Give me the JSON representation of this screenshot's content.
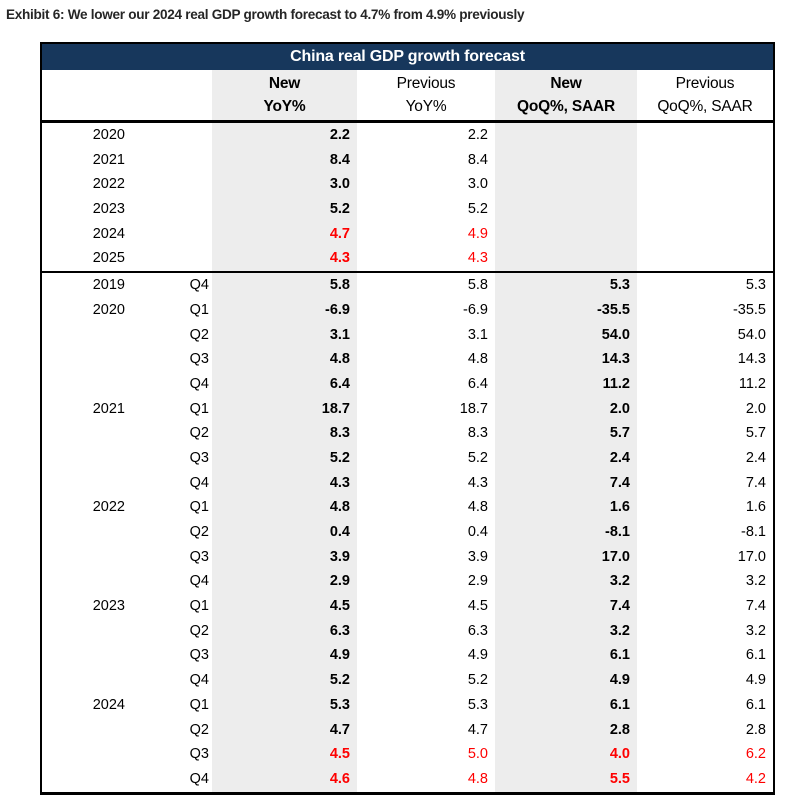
{
  "exhibit_caption": "Exhibit 6: We lower our 2024 real GDP growth forecast to 4.7% from 4.9% previously",
  "colors": {
    "navy": "#17375C",
    "shade": "#EDEDED",
    "red": "#FE0000"
  },
  "chart_data": {
    "type": "table",
    "title": "China real GDP growth forecast",
    "columns": [
      {
        "id": "new_yoy",
        "line1": "New",
        "line2": "YoY%",
        "bold": true,
        "shaded": true
      },
      {
        "id": "prev_yoy",
        "line1": "Previous",
        "line2": "YoY%",
        "bold": false,
        "shaded": false
      },
      {
        "id": "new_qoq",
        "line1": "New",
        "line2": "QoQ%, SAAR",
        "bold": true,
        "shaded": true
      },
      {
        "id": "prev_qoq",
        "line1": "Previous",
        "line2": "QoQ%, SAAR",
        "bold": false,
        "shaded": false
      }
    ],
    "annual_rows": [
      {
        "year": "2020",
        "new_yoy": "2.2",
        "prev_yoy": "2.2",
        "new_qoq": "",
        "prev_qoq": "",
        "red": false
      },
      {
        "year": "2021",
        "new_yoy": "8.4",
        "prev_yoy": "8.4",
        "new_qoq": "",
        "prev_qoq": "",
        "red": false
      },
      {
        "year": "2022",
        "new_yoy": "3.0",
        "prev_yoy": "3.0",
        "new_qoq": "",
        "prev_qoq": "",
        "red": false
      },
      {
        "year": "2023",
        "new_yoy": "5.2",
        "prev_yoy": "5.2",
        "new_qoq": "",
        "prev_qoq": "",
        "red": false
      },
      {
        "year": "2024",
        "new_yoy": "4.7",
        "prev_yoy": "4.9",
        "new_qoq": "",
        "prev_qoq": "",
        "red": true
      },
      {
        "year": "2025",
        "new_yoy": "4.3",
        "prev_yoy": "4.3",
        "new_qoq": "",
        "prev_qoq": "",
        "red": true
      }
    ],
    "quarterly_rows": [
      {
        "year": "2019",
        "quarter": "Q4",
        "new_yoy": "5.8",
        "prev_yoy": "5.8",
        "new_qoq": "5.3",
        "prev_qoq": "5.3",
        "red": false
      },
      {
        "year": "2020",
        "quarter": "Q1",
        "new_yoy": "-6.9",
        "prev_yoy": "-6.9",
        "new_qoq": "-35.5",
        "prev_qoq": "-35.5",
        "red": false
      },
      {
        "year": "",
        "quarter": "Q2",
        "new_yoy": "3.1",
        "prev_yoy": "3.1",
        "new_qoq": "54.0",
        "prev_qoq": "54.0",
        "red": false
      },
      {
        "year": "",
        "quarter": "Q3",
        "new_yoy": "4.8",
        "prev_yoy": "4.8",
        "new_qoq": "14.3",
        "prev_qoq": "14.3",
        "red": false
      },
      {
        "year": "",
        "quarter": "Q4",
        "new_yoy": "6.4",
        "prev_yoy": "6.4",
        "new_qoq": "11.2",
        "prev_qoq": "11.2",
        "red": false
      },
      {
        "year": "2021",
        "quarter": "Q1",
        "new_yoy": "18.7",
        "prev_yoy": "18.7",
        "new_qoq": "2.0",
        "prev_qoq": "2.0",
        "red": false
      },
      {
        "year": "",
        "quarter": "Q2",
        "new_yoy": "8.3",
        "prev_yoy": "8.3",
        "new_qoq": "5.7",
        "prev_qoq": "5.7",
        "red": false
      },
      {
        "year": "",
        "quarter": "Q3",
        "new_yoy": "5.2",
        "prev_yoy": "5.2",
        "new_qoq": "2.4",
        "prev_qoq": "2.4",
        "red": false
      },
      {
        "year": "",
        "quarter": "Q4",
        "new_yoy": "4.3",
        "prev_yoy": "4.3",
        "new_qoq": "7.4",
        "prev_qoq": "7.4",
        "red": false
      },
      {
        "year": "2022",
        "quarter": "Q1",
        "new_yoy": "4.8",
        "prev_yoy": "4.8",
        "new_qoq": "1.6",
        "prev_qoq": "1.6",
        "red": false
      },
      {
        "year": "",
        "quarter": "Q2",
        "new_yoy": "0.4",
        "prev_yoy": "0.4",
        "new_qoq": "-8.1",
        "prev_qoq": "-8.1",
        "red": false
      },
      {
        "year": "",
        "quarter": "Q3",
        "new_yoy": "3.9",
        "prev_yoy": "3.9",
        "new_qoq": "17.0",
        "prev_qoq": "17.0",
        "red": false
      },
      {
        "year": "",
        "quarter": "Q4",
        "new_yoy": "2.9",
        "prev_yoy": "2.9",
        "new_qoq": "3.2",
        "prev_qoq": "3.2",
        "red": false
      },
      {
        "year": "2023",
        "quarter": "Q1",
        "new_yoy": "4.5",
        "prev_yoy": "4.5",
        "new_qoq": "7.4",
        "prev_qoq": "7.4",
        "red": false
      },
      {
        "year": "",
        "quarter": "Q2",
        "new_yoy": "6.3",
        "prev_yoy": "6.3",
        "new_qoq": "3.2",
        "prev_qoq": "3.2",
        "red": false
      },
      {
        "year": "",
        "quarter": "Q3",
        "new_yoy": "4.9",
        "prev_yoy": "4.9",
        "new_qoq": "6.1",
        "prev_qoq": "6.1",
        "red": false
      },
      {
        "year": "",
        "quarter": "Q4",
        "new_yoy": "5.2",
        "prev_yoy": "5.2",
        "new_qoq": "4.9",
        "prev_qoq": "4.9",
        "red": false
      },
      {
        "year": "2024",
        "quarter": "Q1",
        "new_yoy": "5.3",
        "prev_yoy": "5.3",
        "new_qoq": "6.1",
        "prev_qoq": "6.1",
        "red": false
      },
      {
        "year": "",
        "quarter": "Q2",
        "new_yoy": "4.7",
        "prev_yoy": "4.7",
        "new_qoq": "2.8",
        "prev_qoq": "2.8",
        "red": false
      },
      {
        "year": "",
        "quarter": "Q3",
        "new_yoy": "4.5",
        "prev_yoy": "5.0",
        "new_qoq": "4.0",
        "prev_qoq": "6.2",
        "red": true
      },
      {
        "year": "",
        "quarter": "Q4",
        "new_yoy": "4.6",
        "prev_yoy": "4.8",
        "new_qoq": "5.5",
        "prev_qoq": "4.2",
        "red": true
      }
    ]
  }
}
